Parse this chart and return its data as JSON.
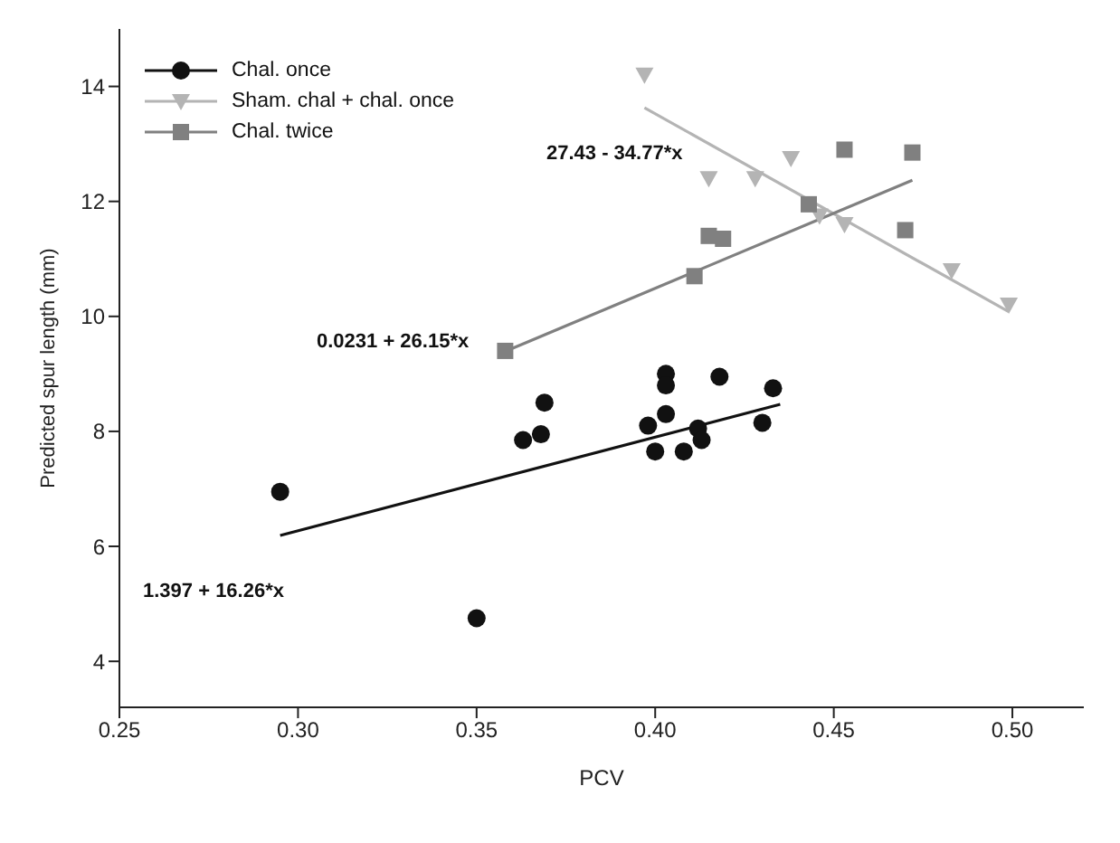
{
  "chart_data": {
    "type": "scatter",
    "xlabel": "PCV",
    "ylabel": "Predicted spur length (mm)",
    "xlim": [
      0.25,
      0.52
    ],
    "xticks": [
      0.25,
      {
        "value": 0.3,
        "label": "0.30"
      },
      0.35,
      {
        "value": 0.4,
        "label": "0.40"
      },
      0.45,
      {
        "value": 0.5,
        "label": "0.50"
      }
    ],
    "ylim": [
      3.2,
      15
    ],
    "yticks": [
      4,
      6,
      8,
      10,
      12,
      14
    ],
    "grid": false,
    "legend": "top left",
    "series": [
      {
        "name": "Chal. once",
        "marker": "circle",
        "color": "#111111",
        "x": [
          0.295,
          0.35,
          0.369,
          0.368,
          0.363,
          0.398,
          0.403,
          0.403,
          0.403,
          0.4,
          0.408,
          0.412,
          0.413,
          0.418,
          0.43,
          0.433
        ],
        "values": [
          6.95,
          4.75,
          8.5,
          7.95,
          7.85,
          8.1,
          9.0,
          8.8,
          8.3,
          7.65,
          7.65,
          8.05,
          7.85,
          8.95,
          8.15,
          8.75
        ]
      },
      {
        "name": "Sham. chal + chal. once",
        "marker": "triangle",
        "color": "#b4b4b4",
        "x": [
          0.397,
          0.415,
          0.428,
          0.438,
          0.446,
          0.453,
          0.483,
          0.499
        ],
        "values": [
          14.2,
          12.4,
          12.4,
          12.75,
          11.75,
          11.6,
          10.8,
          10.2
        ]
      },
      {
        "name": "Chal. twice",
        "marker": "square",
        "color": "#808080",
        "x": [
          0.358,
          0.411,
          0.415,
          0.419,
          0.443,
          0.453,
          0.472,
          0.47
        ],
        "values": [
          9.4,
          10.7,
          11.4,
          11.35,
          11.95,
          12.9,
          12.85,
          11.5
        ]
      },
      {
        "type": "line",
        "marker": "none",
        "color": "#111111",
        "x": [
          0.295,
          0.435
        ],
        "values": [
          6.19,
          8.47
        ]
      },
      {
        "type": "line",
        "marker": "none",
        "color": "#b4b4b4",
        "x": [
          0.397,
          0.499
        ],
        "values": [
          13.63,
          10.08
        ]
      },
      {
        "type": "line",
        "marker": "none",
        "color": "#808080",
        "x": [
          0.358,
          0.472
        ],
        "values": [
          9.39,
          12.37
        ]
      }
    ],
    "annotations": [
      "27.43 - 34.77*x",
      "0.0231 + 26.15*x",
      "1.397 + 16.26*x"
    ]
  }
}
